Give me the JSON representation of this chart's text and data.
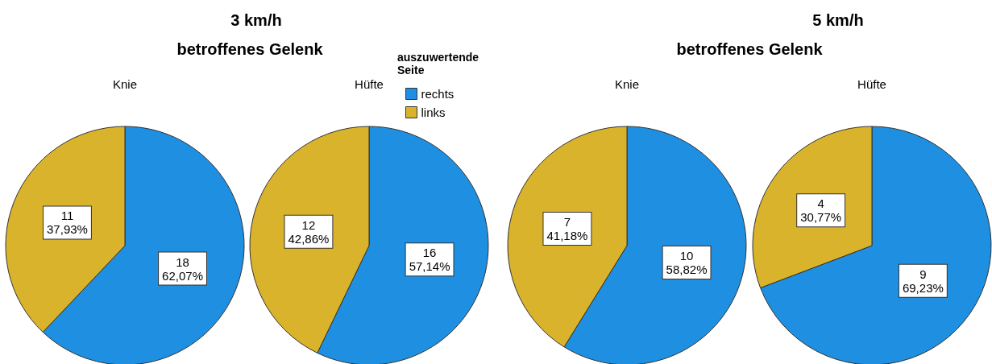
{
  "chart_data": [
    {
      "type": "pie",
      "title": "Knie",
      "annotations": [
        "3 km/h",
        "betroffenes Gelenk"
      ],
      "categories": [
        null,
        null
      ],
      "values": [
        18,
        11
      ],
      "colors": [
        "#1e8fe1",
        "#d9b32b"
      ],
      "value_labels": [
        "18\n62,07%",
        "11\n37,93%"
      ],
      "legend": false
    },
    {
      "type": "pie",
      "title": "Hüfte",
      "legend_title": "auszuwertende Seite",
      "categories": [
        "rechts",
        "links"
      ],
      "values": [
        16,
        12
      ],
      "colors": [
        "#1e8fe1",
        "#d9b32b"
      ],
      "value_labels": [
        "16\n57,14%",
        "12\n42,86%"
      ],
      "legend": "top right"
    },
    {
      "type": "pie",
      "title": "Knie",
      "annotations": [
        "5 km/h",
        "betroffenes Gelenk"
      ],
      "categories": [
        null,
        null
      ],
      "values": [
        10,
        7
      ],
      "colors": [
        "#1e8fe1",
        "#d9b32b"
      ],
      "value_labels": [
        "10\n58,82%",
        "7\n41,18%"
      ],
      "legend": false
    },
    {
      "type": "pie",
      "title": "Hüfte",
      "categories": [
        null,
        null
      ],
      "values": [
        9,
        4
      ],
      "colors": [
        "#1e8fe1",
        "#d9b32b"
      ],
      "value_labels": [
        "9\n69,23%",
        "4\n30,77%"
      ],
      "legend": false
    }
  ]
}
